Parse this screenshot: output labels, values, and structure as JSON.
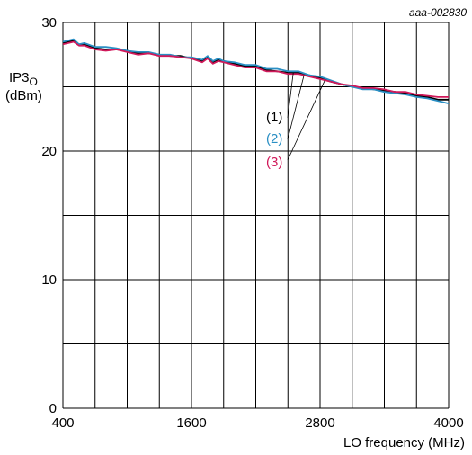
{
  "figure_id": "aaa-002830",
  "colors": {
    "grid": "#000000",
    "leader": "#000000"
  },
  "chart_data": {
    "type": "line",
    "title": "",
    "xlabel": "LO frequency (MHz)",
    "ylabel_main": "IP3",
    "ylabel_sub": "O",
    "ylabel_unit": "(dBm)",
    "xlim": [
      400,
      4000
    ],
    "ylim": [
      0,
      30
    ],
    "x_ticks": [
      400,
      1600,
      2800,
      4000
    ],
    "y_ticks": [
      0,
      10,
      20,
      30
    ],
    "x_grid_step": 300,
    "y_grid_step": 5,
    "grid": true,
    "series": [
      {
        "name": "(1)",
        "color": "#000000",
        "x": [
          400,
          500,
          550,
          600,
          700,
          800,
          900,
          1000,
          1100,
          1200,
          1300,
          1400,
          1500,
          1600,
          1700,
          1750,
          1800,
          1850,
          1900,
          2000,
          2100,
          2200,
          2300,
          2400,
          2500,
          2600,
          2700,
          2800,
          2900,
          3000,
          3100,
          3200,
          3300,
          3400,
          3500,
          3600,
          3700,
          3800,
          3900,
          4000
        ],
        "y": [
          28.4,
          28.6,
          28.3,
          28.3,
          28.0,
          27.9,
          27.9,
          27.8,
          27.6,
          27.6,
          27.5,
          27.4,
          27.4,
          27.2,
          27.0,
          27.3,
          26.9,
          27.1,
          27.0,
          26.8,
          26.6,
          26.6,
          26.3,
          26.2,
          26.1,
          26.1,
          25.9,
          25.7,
          25.4,
          25.2,
          25.0,
          24.9,
          24.8,
          24.7,
          24.6,
          24.5,
          24.3,
          24.2,
          24.0,
          24.0
        ]
      },
      {
        "name": "(2)",
        "color": "#2a8fc4",
        "x": [
          400,
          500,
          550,
          600,
          700,
          800,
          900,
          1000,
          1100,
          1200,
          1300,
          1400,
          1500,
          1600,
          1700,
          1750,
          1800,
          1850,
          1900,
          2000,
          2100,
          2200,
          2300,
          2400,
          2500,
          2600,
          2700,
          2800,
          2900,
          3000,
          3100,
          3200,
          3300,
          3400,
          3500,
          3600,
          3700,
          3800,
          3900,
          4000
        ],
        "y": [
          28.5,
          28.7,
          28.3,
          28.4,
          28.1,
          28.1,
          28.0,
          27.8,
          27.7,
          27.7,
          27.5,
          27.5,
          27.3,
          27.3,
          27.1,
          27.4,
          27.0,
          27.2,
          27.0,
          26.9,
          26.7,
          26.7,
          26.4,
          26.4,
          26.2,
          26.2,
          25.9,
          25.8,
          25.5,
          25.2,
          25.0,
          24.8,
          24.8,
          24.6,
          24.5,
          24.4,
          24.2,
          24.1,
          23.9,
          23.7
        ]
      },
      {
        "name": "(3)",
        "color": "#d0195a",
        "x": [
          400,
          500,
          550,
          600,
          700,
          800,
          900,
          1000,
          1100,
          1200,
          1300,
          1400,
          1500,
          1600,
          1700,
          1750,
          1800,
          1850,
          1900,
          2000,
          2100,
          2200,
          2300,
          2400,
          2500,
          2600,
          2700,
          2800,
          2900,
          3000,
          3100,
          3200,
          3300,
          3400,
          3500,
          3600,
          3700,
          3800,
          3900,
          4000
        ],
        "y": [
          28.3,
          28.5,
          28.2,
          28.2,
          27.9,
          27.8,
          27.9,
          27.7,
          27.5,
          27.6,
          27.4,
          27.4,
          27.3,
          27.2,
          26.9,
          27.2,
          26.8,
          27.0,
          26.9,
          26.7,
          26.5,
          26.5,
          26.2,
          26.2,
          26.0,
          26.0,
          25.8,
          25.6,
          25.4,
          25.2,
          25.1,
          24.9,
          24.9,
          24.8,
          24.6,
          24.6,
          24.4,
          24.3,
          24.2,
          24.2
        ]
      }
    ],
    "label_anchors": [
      {
        "x": 2550,
        "y": 26.1
      },
      {
        "x": 2650,
        "y": 25.9
      },
      {
        "x": 2850,
        "y": 25.6
      }
    ]
  }
}
